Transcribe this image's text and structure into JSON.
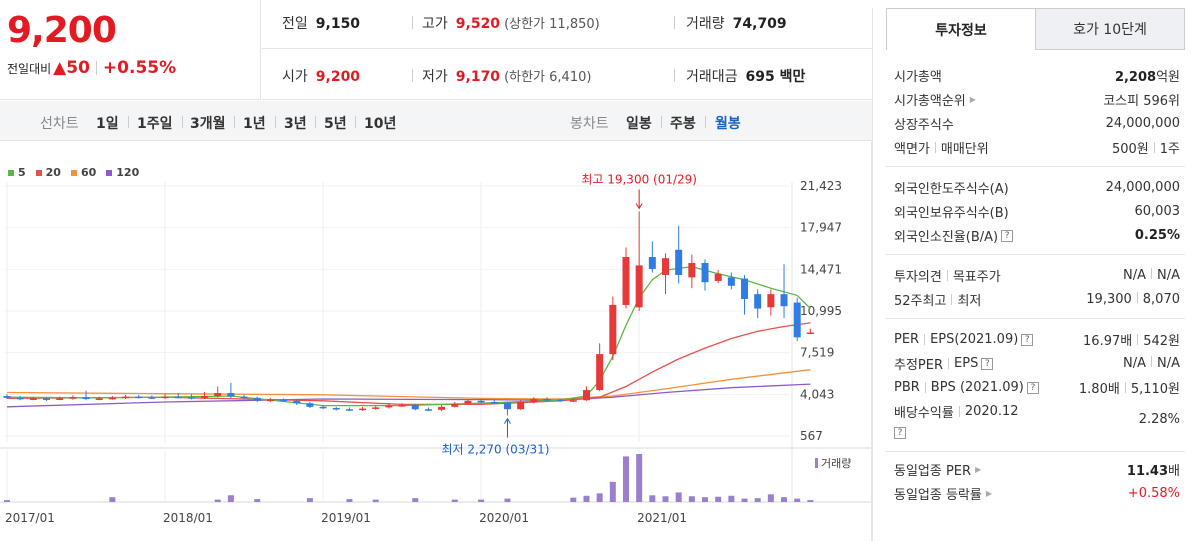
{
  "price": {
    "current": "9,200",
    "change_label": "전일대비",
    "change_arrow": "▲",
    "change_value": "50",
    "change_pct": "+0.55%",
    "up_color": "#e21b23"
  },
  "summary": {
    "prev_label": "전일",
    "prev_value": "9,150",
    "high_label": "고가",
    "high_value": "9,520",
    "upper_limit": "(상한가 11,850)",
    "volume_label": "거래량",
    "volume_value": "74,709",
    "open_label": "시가",
    "open_value": "9,200",
    "low_label": "저가",
    "low_value": "9,170",
    "lower_limit": "(하한가 6,410)",
    "amount_label": "거래대금",
    "amount_value": "695 백만"
  },
  "period_bar": {
    "line_label": "선차트",
    "line_periods": [
      "1일",
      "1주일",
      "3개월",
      "1년",
      "3년",
      "5년",
      "10년"
    ],
    "candle_label": "봉차트",
    "candle_periods": [
      "일봉",
      "주봉",
      "월봉"
    ],
    "candle_active": "월봉"
  },
  "chart_data": {
    "type": "line",
    "title": "",
    "legend": [
      {
        "name": "5",
        "color": "#59b946"
      },
      {
        "name": "20",
        "color": "#e8504e"
      },
      {
        "name": "60",
        "color": "#f2923d"
      },
      {
        "name": "120",
        "color": "#8d5bc9"
      }
    ],
    "y_ticks": [
      "21,423",
      "17,947",
      "14,471",
      "10,995",
      "7,519",
      "4,043",
      "567"
    ],
    "y_tick_values": [
      21423,
      17947,
      14471,
      10995,
      7519,
      4043,
      567
    ],
    "ylim": [
      567,
      21423
    ],
    "x_ticks": [
      "2017/01",
      "2018/01",
      "2019/01",
      "2020/01",
      "2021/01"
    ],
    "x_tick_months": [
      0,
      12,
      24,
      36,
      48
    ],
    "volume_label": "거래량",
    "annotations": {
      "high": {
        "text": "최고 19,300 (01/29)",
        "month": 48,
        "value": 19300
      },
      "low": {
        "text": "최저 2,270 (03/31)",
        "month": 38,
        "value": 2270
      }
    },
    "candles": [
      {
        "m": 0,
        "o": 3900,
        "c": 3750,
        "h": 4050,
        "l": 3650
      },
      {
        "m": 1,
        "o": 3750,
        "c": 3650,
        "h": 3900,
        "l": 3550
      },
      {
        "m": 2,
        "o": 3650,
        "c": 3700,
        "h": 3800,
        "l": 3550
      },
      {
        "m": 3,
        "o": 3700,
        "c": 3600,
        "h": 3800,
        "l": 3500
      },
      {
        "m": 4,
        "o": 3600,
        "c": 3700,
        "h": 3850,
        "l": 3550
      },
      {
        "m": 5,
        "o": 3700,
        "c": 3800,
        "h": 3950,
        "l": 3600
      },
      {
        "m": 6,
        "o": 3800,
        "c": 3650,
        "h": 4350,
        "l": 3550
      },
      {
        "m": 7,
        "o": 3650,
        "c": 3700,
        "h": 3850,
        "l": 3550
      },
      {
        "m": 8,
        "o": 3700,
        "c": 3750,
        "h": 3900,
        "l": 3600
      },
      {
        "m": 9,
        "o": 3750,
        "c": 3850,
        "h": 4000,
        "l": 3650
      },
      {
        "m": 10,
        "o": 3850,
        "c": 3800,
        "h": 4000,
        "l": 3700
      },
      {
        "m": 11,
        "o": 3800,
        "c": 3750,
        "h": 3950,
        "l": 3650
      },
      {
        "m": 12,
        "o": 3750,
        "c": 3850,
        "h": 4100,
        "l": 3650
      },
      {
        "m": 13,
        "o": 3850,
        "c": 3800,
        "h": 4150,
        "l": 3700
      },
      {
        "m": 14,
        "o": 3800,
        "c": 3700,
        "h": 4050,
        "l": 3600
      },
      {
        "m": 15,
        "o": 3700,
        "c": 3900,
        "h": 4250,
        "l": 3650
      },
      {
        "m": 16,
        "o": 3900,
        "c": 4150,
        "h": 4700,
        "l": 3800
      },
      {
        "m": 17,
        "o": 4150,
        "c": 3850,
        "h": 5000,
        "l": 3750
      },
      {
        "m": 18,
        "o": 3850,
        "c": 3750,
        "h": 4000,
        "l": 3650
      },
      {
        "m": 19,
        "o": 3750,
        "c": 3500,
        "h": 3850,
        "l": 3400
      },
      {
        "m": 20,
        "o": 3500,
        "c": 3600,
        "h": 3750,
        "l": 3400
      },
      {
        "m": 21,
        "o": 3600,
        "c": 3500,
        "h": 3700,
        "l": 3400
      },
      {
        "m": 22,
        "o": 3500,
        "c": 3300,
        "h": 3600,
        "l": 3150
      },
      {
        "m": 23,
        "o": 3300,
        "c": 3000,
        "h": 3400,
        "l": 2900
      },
      {
        "m": 24,
        "o": 3000,
        "c": 2900,
        "h": 3150,
        "l": 2800
      },
      {
        "m": 25,
        "o": 2900,
        "c": 2800,
        "h": 3000,
        "l": 2700
      },
      {
        "m": 26,
        "o": 2800,
        "c": 2750,
        "h": 2950,
        "l": 2650
      },
      {
        "m": 27,
        "o": 2750,
        "c": 2850,
        "h": 3000,
        "l": 2650
      },
      {
        "m": 28,
        "o": 2850,
        "c": 2950,
        "h": 3100,
        "l": 2750
      },
      {
        "m": 29,
        "o": 2950,
        "c": 3100,
        "h": 3300,
        "l": 2850
      },
      {
        "m": 30,
        "o": 3100,
        "c": 3150,
        "h": 3300,
        "l": 3000
      },
      {
        "m": 31,
        "o": 3150,
        "c": 2800,
        "h": 3250,
        "l": 2700
      },
      {
        "m": 32,
        "o": 2800,
        "c": 2750,
        "h": 2950,
        "l": 2650
      },
      {
        "m": 33,
        "o": 2750,
        "c": 3000,
        "h": 3150,
        "l": 2650
      },
      {
        "m": 34,
        "o": 3000,
        "c": 3250,
        "h": 3400,
        "l": 2950
      },
      {
        "m": 35,
        "o": 3250,
        "c": 3500,
        "h": 3650,
        "l": 3150
      },
      {
        "m": 36,
        "o": 3500,
        "c": 3400,
        "h": 3650,
        "l": 3300
      },
      {
        "m": 37,
        "o": 3400,
        "c": 3350,
        "h": 3550,
        "l": 3250
      },
      {
        "m": 38,
        "o": 3350,
        "c": 2800,
        "h": 3450,
        "l": 2270
      },
      {
        "m": 39,
        "o": 2800,
        "c": 3400,
        "h": 3550,
        "l": 2750
      },
      {
        "m": 40,
        "o": 3400,
        "c": 3650,
        "h": 3800,
        "l": 3300
      },
      {
        "m": 41,
        "o": 3650,
        "c": 3600,
        "h": 3800,
        "l": 3500
      },
      {
        "m": 42,
        "o": 3600,
        "c": 3500,
        "h": 3700,
        "l": 3400
      },
      {
        "m": 43,
        "o": 3500,
        "c": 3550,
        "h": 3750,
        "l": 3400
      },
      {
        "m": 44,
        "o": 3550,
        "c": 4400,
        "h": 4700,
        "l": 3500
      },
      {
        "m": 45,
        "o": 4400,
        "c": 7400,
        "h": 8300,
        "l": 4300
      },
      {
        "m": 46,
        "o": 7400,
        "c": 11500,
        "h": 12200,
        "l": 6900
      },
      {
        "m": 47,
        "o": 11500,
        "c": 15500,
        "h": 16300,
        "l": 11200
      },
      {
        "m": 48,
        "o": 11300,
        "c": 14800,
        "h": 19300,
        "l": 11000
      },
      {
        "m": 49,
        "o": 15500,
        "c": 14500,
        "h": 16800,
        "l": 14200
      },
      {
        "m": 50,
        "o": 14000,
        "c": 15400,
        "h": 15800,
        "l": 12400
      },
      {
        "m": 51,
        "o": 16100,
        "c": 14000,
        "h": 18100,
        "l": 13300
      },
      {
        "m": 52,
        "o": 13800,
        "c": 15000,
        "h": 15700,
        "l": 12900
      },
      {
        "m": 53,
        "o": 15000,
        "c": 13400,
        "h": 15300,
        "l": 12700
      },
      {
        "m": 54,
        "o": 13500,
        "c": 14100,
        "h": 14400,
        "l": 13300
      },
      {
        "m": 55,
        "o": 13800,
        "c": 13100,
        "h": 14200,
        "l": 12800
      },
      {
        "m": 56,
        "o": 13700,
        "c": 12000,
        "h": 14000,
        "l": 10700
      },
      {
        "m": 57,
        "o": 12400,
        "c": 11200,
        "h": 12800,
        "l": 10400
      },
      {
        "m": 58,
        "o": 11300,
        "c": 12400,
        "h": 12800,
        "l": 10600
      },
      {
        "m": 59,
        "o": 12400,
        "c": 11400,
        "h": 14900,
        "l": 10400
      },
      {
        "m": 60,
        "o": 11700,
        "c": 8800,
        "h": 12100,
        "l": 8500
      },
      {
        "m": 61,
        "o": 9150,
        "c": 9200,
        "h": 9520,
        "l": 9170
      }
    ],
    "series": [
      {
        "name": "5",
        "color": "#59b946",
        "points": [
          [
            0,
            3800
          ],
          [
            6,
            3750
          ],
          [
            12,
            3800
          ],
          [
            17,
            3900
          ],
          [
            24,
            3100
          ],
          [
            30,
            3100
          ],
          [
            36,
            3300
          ],
          [
            42,
            3550
          ],
          [
            44,
            3900
          ],
          [
            45,
            5200
          ],
          [
            46,
            7200
          ],
          [
            47,
            9800
          ],
          [
            48,
            12100
          ],
          [
            49,
            13600
          ],
          [
            50,
            14400
          ],
          [
            52,
            14700
          ],
          [
            54,
            14100
          ],
          [
            56,
            13600
          ],
          [
            58,
            12900
          ],
          [
            60,
            12300
          ],
          [
            61,
            11200
          ]
        ]
      },
      {
        "name": "20",
        "color": "#e8504e",
        "points": [
          [
            0,
            3700
          ],
          [
            12,
            3800
          ],
          [
            24,
            3500
          ],
          [
            30,
            3200
          ],
          [
            36,
            3200
          ],
          [
            42,
            3500
          ],
          [
            45,
            3800
          ],
          [
            47,
            4700
          ],
          [
            49,
            5900
          ],
          [
            51,
            7000
          ],
          [
            53,
            7900
          ],
          [
            55,
            8700
          ],
          [
            57,
            9300
          ],
          [
            59,
            9700
          ],
          [
            61,
            10000
          ]
        ]
      },
      {
        "name": "60",
        "color": "#f2923d",
        "points": [
          [
            0,
            4200
          ],
          [
            12,
            4100
          ],
          [
            24,
            4000
          ],
          [
            36,
            3700
          ],
          [
            42,
            3650
          ],
          [
            46,
            3900
          ],
          [
            50,
            4500
          ],
          [
            55,
            5300
          ],
          [
            61,
            6100
          ]
        ]
      },
      {
        "name": "120",
        "color": "#8d5bc9",
        "points": [
          [
            0,
            3000
          ],
          [
            12,
            3400
          ],
          [
            24,
            3650
          ],
          [
            36,
            3600
          ],
          [
            42,
            3550
          ],
          [
            46,
            3800
          ],
          [
            50,
            4200
          ],
          [
            55,
            4600
          ],
          [
            61,
            4900
          ]
        ]
      }
    ],
    "volume": [
      {
        "m": 0,
        "v": 4
      },
      {
        "m": 8,
        "v": 10
      },
      {
        "m": 16,
        "v": 5
      },
      {
        "m": 17,
        "v": 14
      },
      {
        "m": 19,
        "v": 6
      },
      {
        "m": 23,
        "v": 8
      },
      {
        "m": 26,
        "v": 6
      },
      {
        "m": 28,
        "v": 5
      },
      {
        "m": 31,
        "v": 8
      },
      {
        "m": 34,
        "v": 5
      },
      {
        "m": 36,
        "v": 5
      },
      {
        "m": 38,
        "v": 7
      },
      {
        "m": 43,
        "v": 9
      },
      {
        "m": 44,
        "v": 13
      },
      {
        "m": 45,
        "v": 18
      },
      {
        "m": 46,
        "v": 42
      },
      {
        "m": 47,
        "v": 95
      },
      {
        "m": 48,
        "v": 100
      },
      {
        "m": 49,
        "v": 14
      },
      {
        "m": 50,
        "v": 12
      },
      {
        "m": 51,
        "v": 20
      },
      {
        "m": 52,
        "v": 12
      },
      {
        "m": 53,
        "v": 10
      },
      {
        "m": 54,
        "v": 11
      },
      {
        "m": 55,
        "v": 13
      },
      {
        "m": 56,
        "v": 7
      },
      {
        "m": 57,
        "v": 8
      },
      {
        "m": 58,
        "v": 16
      },
      {
        "m": 59,
        "v": 10
      },
      {
        "m": 60,
        "v": 7
      },
      {
        "m": 61,
        "v": 4
      }
    ]
  },
  "right_panel": {
    "tab_active": "투자정보",
    "tab_other": "호가 10단계",
    "rows": {
      "mktcap_label": "시가총액",
      "mktcap_value": "2,208",
      "mktcap_unit": "억원",
      "mktcap_rank_label": "시가총액순위",
      "mktcap_rank_value": "코스피 596위",
      "shares_label": "상장주식수",
      "shares_value": "24,000,000",
      "par_label": "액면가",
      "unit_label": "매매단위",
      "par_value": "500원",
      "unit_value": "1주",
      "foreign_limit_label": "외국인한도주식수(A)",
      "foreign_limit_value": "24,000,000",
      "foreign_hold_label": "외국인보유주식수(B)",
      "foreign_hold_value": "60,003",
      "foreign_ratio_label": "외국인소진율(B/A)",
      "foreign_ratio_value": "0.25%",
      "opinion_label": "투자의견",
      "target_label": "목표주가",
      "opinion_value": "N/A",
      "target_value": "N/A",
      "wk52_high_label": "52주최고",
      "wk52_low_label": "최저",
      "wk52_high_value": "19,300",
      "wk52_low_value": "8,070",
      "per_label": "PER",
      "eps_label": "EPS(2021.09)",
      "per_value": "16.97배",
      "eps_value": "542원",
      "est_per_label": "추정PER",
      "est_eps_label": "EPS",
      "est_per_value": "N/A",
      "est_eps_value": "N/A",
      "pbr_label": "PBR",
      "bps_label": "BPS (2021.09)",
      "pbr_value": "1.80배",
      "bps_value": "5,110원",
      "div_label": "배당수익률",
      "div_year": "2020.12",
      "div_value": "2.28%",
      "sector_per_label": "동일업종 PER",
      "sector_per_value": "11.43",
      "sector_per_unit": "배",
      "sector_chg_label": "동일업종 등락률",
      "sector_chg_value": "+0.58%"
    }
  }
}
